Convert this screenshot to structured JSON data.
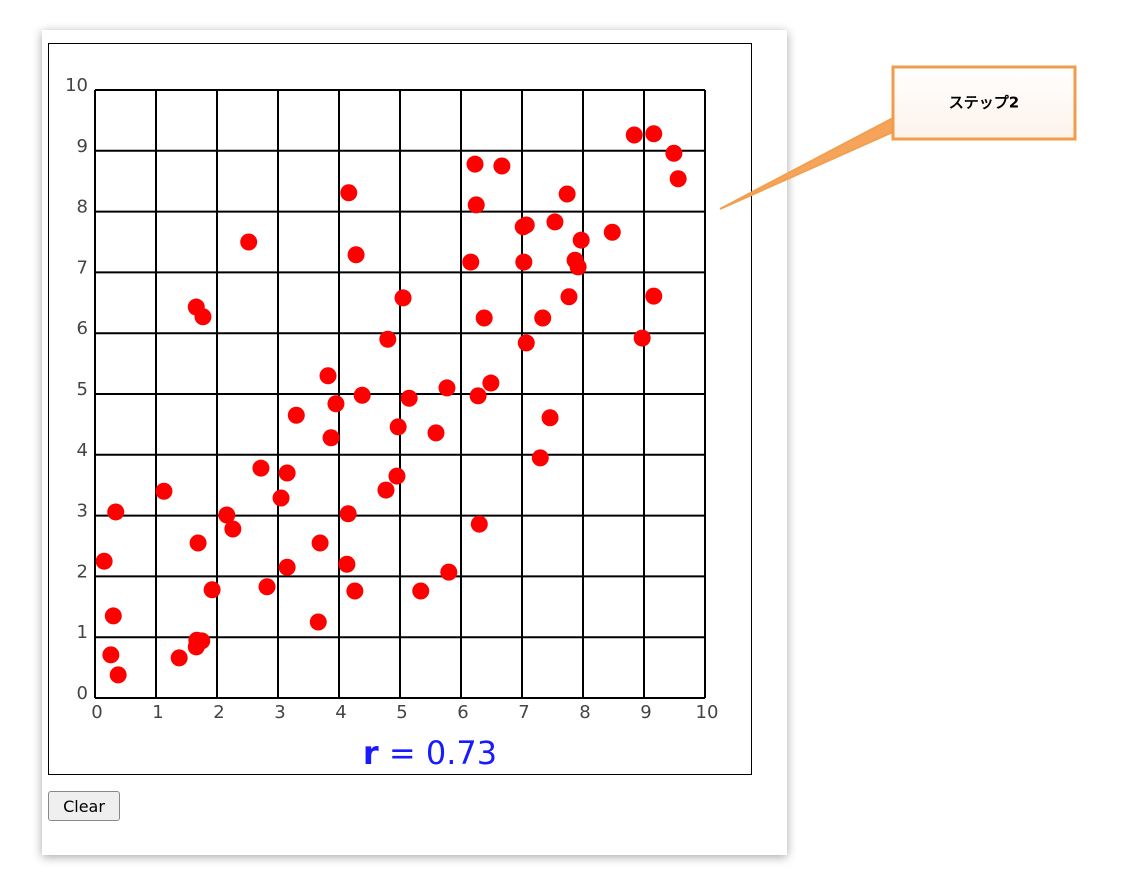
{
  "chart_data": {
    "type": "scatter",
    "color": "#ff0000",
    "grid": true,
    "x": [
      0.15,
      0.3,
      0.26,
      0.38,
      0.34,
      1.13,
      1.38,
      1.66,
      1.67,
      1.75,
      1.69,
      1.92,
      1.66,
      1.77,
      2.16,
      2.26,
      2.52,
      2.72,
      2.82,
      3.05,
      3.15,
      3.15,
      3.3,
      3.66,
      3.69,
      3.82,
      3.87,
      3.95,
      4.13,
      4.15,
      4.16,
      4.26,
      4.28,
      4.38,
      4.77,
      4.8,
      4.95,
      4.97,
      5.05,
      5.15,
      5.34,
      5.59,
      5.77,
      5.8,
      6.16,
      6.23,
      6.25,
      6.28,
      6.3,
      6.38,
      6.49,
      6.67,
      7.02,
      7.07,
      7.03,
      7.07,
      7.3,
      7.34,
      7.46,
      7.54,
      7.74,
      7.77,
      7.87,
      7.92,
      7.97,
      8.48,
      8.84,
      8.97,
      9.16,
      9.16,
      9.49,
      9.56
    ],
    "values": [
      2.25,
      1.35,
      0.71,
      0.38,
      3.06,
      3.4,
      0.66,
      0.84,
      0.95,
      0.94,
      2.55,
      1.78,
      6.43,
      6.27,
      3.01,
      2.78,
      7.5,
      3.78,
      1.83,
      3.29,
      3.7,
      2.15,
      4.65,
      1.25,
      2.55,
      5.3,
      4.28,
      4.84,
      2.2,
      3.03,
      8.31,
      1.76,
      7.29,
      4.98,
      3.42,
      5.9,
      3.65,
      4.46,
      6.58,
      4.93,
      1.76,
      4.36,
      5.1,
      2.07,
      7.17,
      8.78,
      8.11,
      4.97,
      2.86,
      6.25,
      5.18,
      8.75,
      7.75,
      7.78,
      7.17,
      5.84,
      3.95,
      6.25,
      4.61,
      7.83,
      8.29,
      6.6,
      7.2,
      7.09,
      7.53,
      7.66,
      9.26,
      5.92,
      6.61,
      9.28,
      8.96,
      8.54
    ],
    "xlim": [
      0,
      10
    ],
    "ylim": [
      0,
      10
    ],
    "xticks": [
      0,
      1,
      2,
      3,
      4,
      5,
      6,
      7,
      8,
      9,
      10
    ],
    "yticks": [
      0,
      1,
      2,
      3,
      4,
      5,
      6,
      7,
      8,
      9,
      10
    ],
    "annotation": {
      "symbol": "r",
      "text": "= 0.73"
    }
  },
  "button": "Clear",
  "callout": "ステップ2"
}
